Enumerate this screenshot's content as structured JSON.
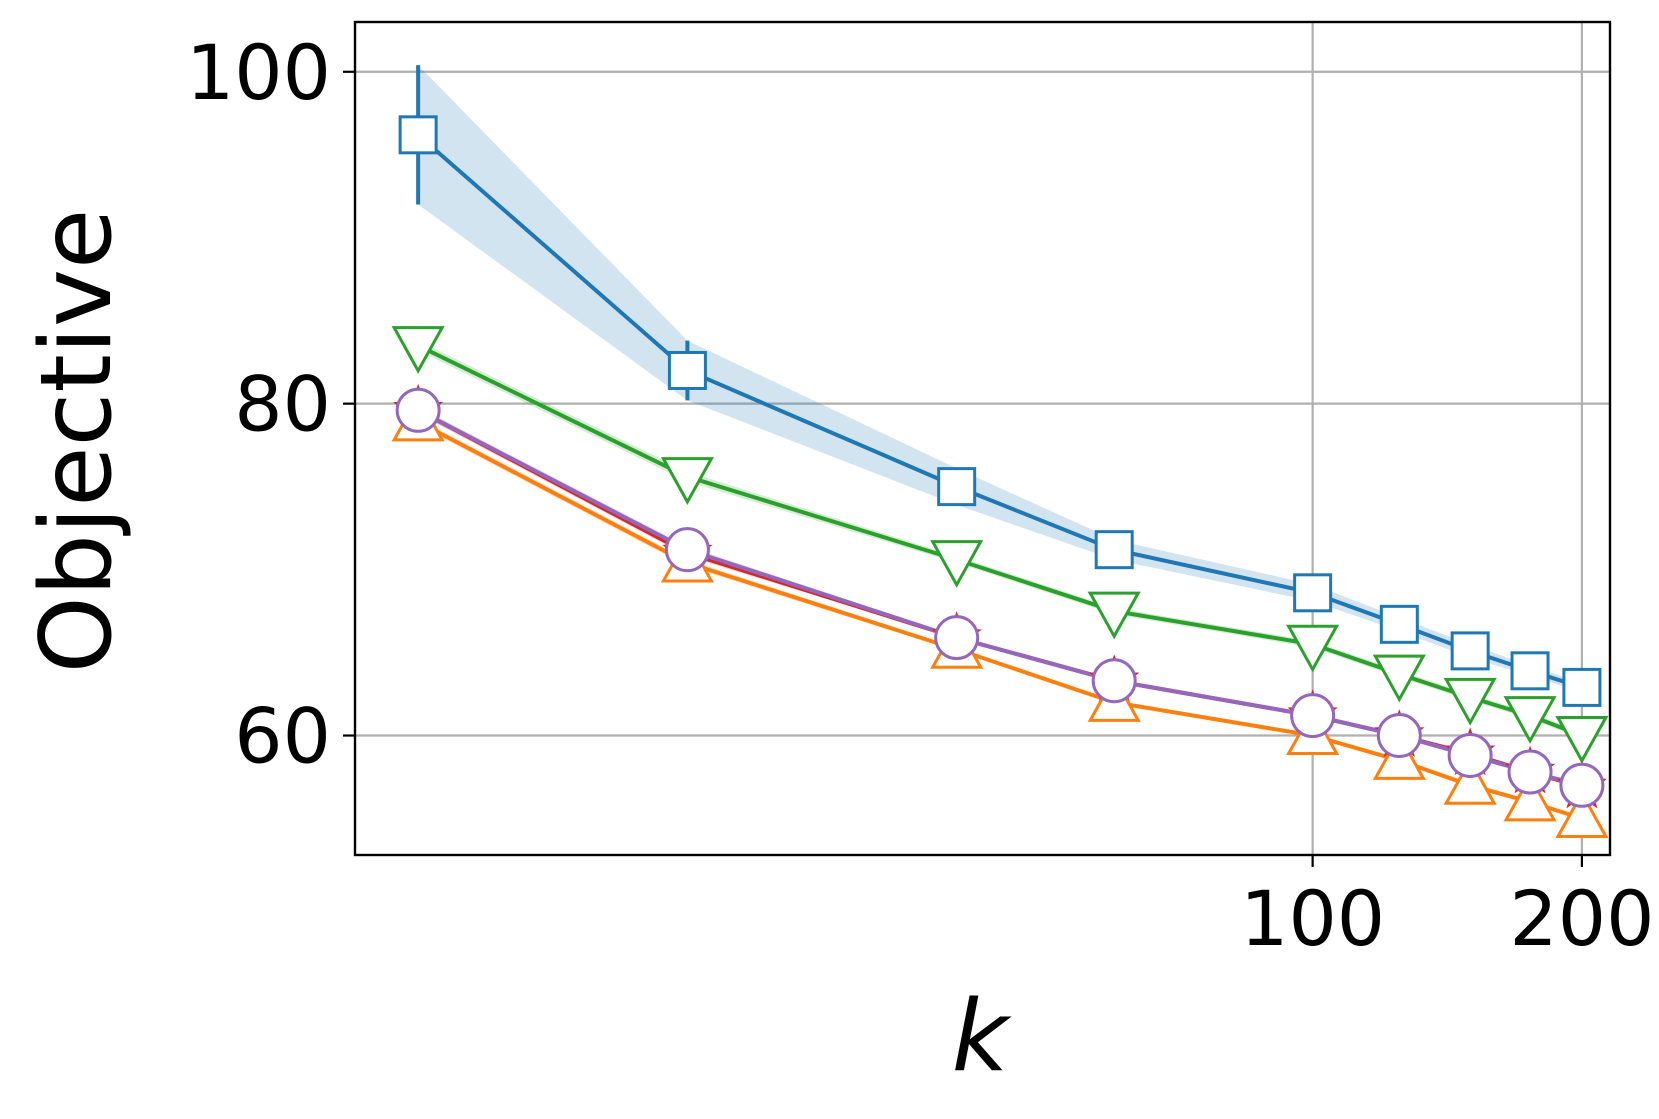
{
  "chart_data": {
    "type": "line",
    "xlabel": "k",
    "ylabel": "Objective",
    "xscale": "log",
    "xlim": [
      8.5,
      215
    ],
    "ylim": [
      52.8,
      103
    ],
    "xticks": [
      100,
      200
    ],
    "xtick_labels": [
      "100",
      "200"
    ],
    "yticks": [
      60,
      80,
      100
    ],
    "ytick_labels": [
      "60",
      "80",
      "100"
    ],
    "grid": true,
    "legend": "none",
    "x": [
      10,
      20,
      40,
      60,
      100,
      125,
      150,
      175,
      200
    ],
    "series": [
      {
        "color": "#1f77b4",
        "marker": "square",
        "values": [
          96.2,
          82.0,
          75.0,
          71.2,
          68.6,
          66.7,
          65.1,
          63.9,
          62.9
        ],
        "error": [
          4.2,
          1.8,
          1.1,
          0.6,
          0.5,
          0.4,
          0.4,
          0.3,
          0.3
        ]
      },
      {
        "color": "#2ca02c",
        "marker": "triangle-down",
        "values": [
          83.5,
          75.6,
          70.6,
          67.5,
          65.5,
          63.7,
          62.3,
          61.2,
          60.0
        ],
        "error": [
          0.3,
          0.3,
          0.2,
          0.2,
          0.2,
          0.2,
          0.2,
          0.2,
          0.2
        ]
      },
      {
        "color": "#d62728",
        "marker": "star",
        "values": [
          79.6,
          71.0,
          65.9,
          63.3,
          61.2,
          60.0,
          58.9,
          57.8,
          56.9
        ],
        "error": [
          0.2,
          0.2,
          0.1,
          0.1,
          0.1,
          0.1,
          0.1,
          0.1,
          0.1
        ]
      },
      {
        "color": "#ff7f0e",
        "marker": "triangle-up",
        "values": [
          78.9,
          70.4,
          65.2,
          62.0,
          60.0,
          58.5,
          57.0,
          56.0,
          55.0
        ],
        "error": [
          0.2,
          0.2,
          0.1,
          0.1,
          0.1,
          0.1,
          0.1,
          0.1,
          0.1
        ]
      },
      {
        "color": "#9467bd",
        "marker": "circle",
        "values": [
          79.6,
          71.2,
          65.9,
          63.3,
          61.2,
          60.0,
          58.8,
          57.8,
          57.0
        ],
        "error": [
          0.2,
          0.2,
          0.1,
          0.1,
          0.1,
          0.1,
          0.1,
          0.1,
          0.1
        ]
      }
    ]
  }
}
